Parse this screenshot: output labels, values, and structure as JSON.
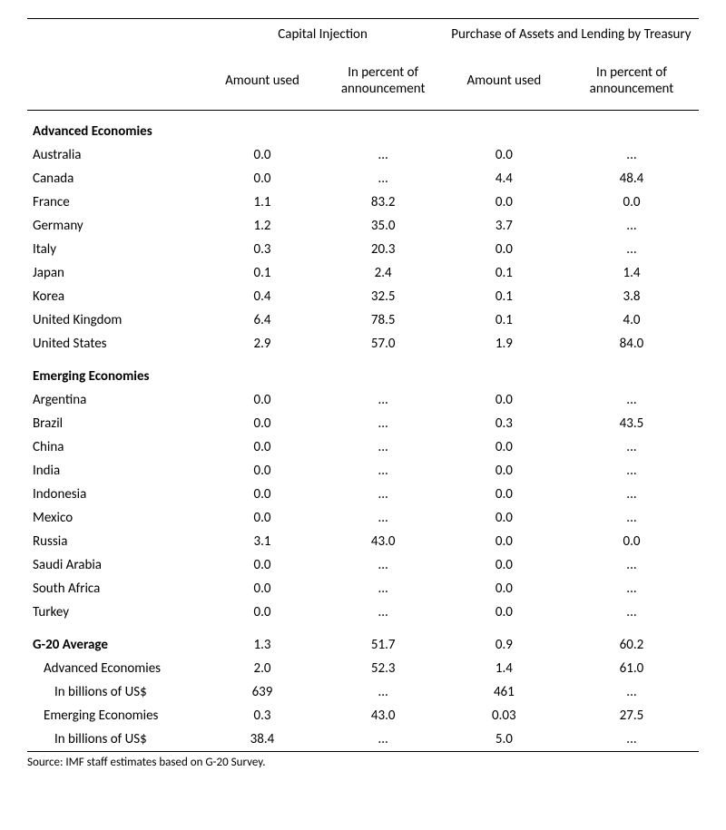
{
  "headers": {
    "group1": "Capital Injection",
    "group2": "Purchase of Assets and Lending by Treasury",
    "sub_amount": "Amount used",
    "sub_percent": "In percent of announcement"
  },
  "sections": [
    {
      "title": "Advanced Economies",
      "rows": [
        {
          "label": "Australia",
          "c1": "0.0",
          "c2": "...",
          "c3": "0.0",
          "c4": "..."
        },
        {
          "label": "Canada",
          "c1": "0.0",
          "c2": "...",
          "c3": "4.4",
          "c4": "48.4"
        },
        {
          "label": "France",
          "c1": "1.1",
          "c2": "83.2",
          "c3": "0.0",
          "c4": "0.0"
        },
        {
          "label": "Germany",
          "c1": "1.2",
          "c2": "35.0",
          "c3": "3.7",
          "c4": "..."
        },
        {
          "label": "Italy",
          "c1": "0.3",
          "c2": "20.3",
          "c3": "0.0",
          "c4": "..."
        },
        {
          "label": "Japan",
          "c1": "0.1",
          "c2": "2.4",
          "c3": "0.1",
          "c4": "1.4"
        },
        {
          "label": "Korea",
          "c1": "0.4",
          "c2": "32.5",
          "c3": "0.1",
          "c4": "3.8"
        },
        {
          "label": "United Kingdom",
          "c1": "6.4",
          "c2": "78.5",
          "c3": "0.1",
          "c4": "4.0"
        },
        {
          "label": "United States",
          "c1": "2.9",
          "c2": "57.0",
          "c3": "1.9",
          "c4": "84.0"
        }
      ]
    },
    {
      "title": "Emerging Economies",
      "rows": [
        {
          "label": "Argentina",
          "c1": "0.0",
          "c2": "...",
          "c3": "0.0",
          "c4": "..."
        },
        {
          "label": "Brazil",
          "c1": "0.0",
          "c2": "...",
          "c3": "0.3",
          "c4": "43.5"
        },
        {
          "label": "China",
          "c1": "0.0",
          "c2": "...",
          "c3": "0.0",
          "c4": "..."
        },
        {
          "label": "India",
          "c1": "0.0",
          "c2": "...",
          "c3": "0.0",
          "c4": "..."
        },
        {
          "label": "Indonesia",
          "c1": "0.0",
          "c2": "...",
          "c3": "0.0",
          "c4": "..."
        },
        {
          "label": "Mexico",
          "c1": "0.0",
          "c2": "...",
          "c3": "0.0",
          "c4": "..."
        },
        {
          "label": "Russia",
          "c1": "3.1",
          "c2": "43.0",
          "c3": "0.0",
          "c4": "0.0"
        },
        {
          "label": "Saudi Arabia",
          "c1": "0.0",
          "c2": "...",
          "c3": "0.0",
          "c4": "..."
        },
        {
          "label": "South Africa",
          "c1": "0.0",
          "c2": "...",
          "c3": "0.0",
          "c4": "..."
        },
        {
          "label": "Turkey",
          "c1": "0.0",
          "c2": "...",
          "c3": "0.0",
          "c4": "..."
        }
      ]
    }
  ],
  "summary": [
    {
      "label": "G-20 Average",
      "indent": 0,
      "bold": true,
      "c1": "1.3",
      "c2": "51.7",
      "c3": "0.9",
      "c4": "60.2"
    },
    {
      "label": "Advanced Economies",
      "indent": 1,
      "bold": false,
      "c1": "2.0",
      "c2": "52.3",
      "c3": "1.4",
      "c4": "61.0"
    },
    {
      "label": "In billions of US$",
      "indent": 2,
      "bold": false,
      "c1": "639",
      "c2": "...",
      "c3": "461",
      "c4": "..."
    },
    {
      "label": "Emerging Economies",
      "indent": 1,
      "bold": false,
      "c1": "0.3",
      "c2": "43.0",
      "c3": "0.03",
      "c4": "27.5"
    },
    {
      "label": "In billions of US$",
      "indent": 2,
      "bold": false,
      "c1": "38.4",
      "c2": "...",
      "c3": "5.0",
      "c4": "..."
    }
  ],
  "source": "Source: IMF staff estimates based on G-20 Survey."
}
